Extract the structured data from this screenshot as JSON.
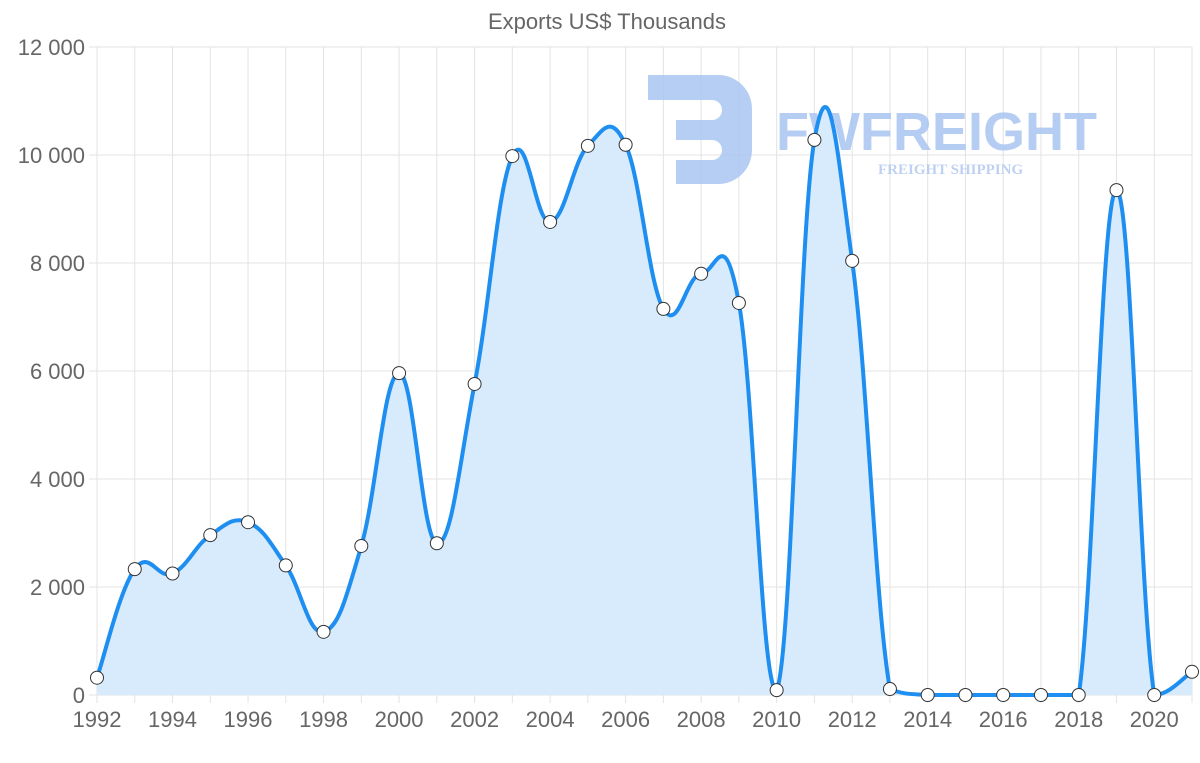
{
  "chart_data": {
    "type": "area",
    "title": "Exports US$ Thousands",
    "xlabel": "",
    "ylabel": "",
    "x": [
      1992,
      1993,
      1994,
      1995,
      1996,
      1997,
      1998,
      1999,
      2000,
      2001,
      2002,
      2003,
      2004,
      2005,
      2006,
      2007,
      2008,
      2009,
      2010,
      2011,
      2012,
      2013,
      2014,
      2015,
      2016,
      2017,
      2018,
      2019,
      2020,
      2021
    ],
    "series": [
      {
        "name": "Exports US$ Thousands",
        "values": [
          320,
          2330,
          2250,
          2960,
          3200,
          2400,
          1170,
          2760,
          5960,
          2810,
          5760,
          9980,
          8760,
          10170,
          10190,
          7150,
          7800,
          7260,
          90,
          10280,
          8040,
          110,
          0,
          0,
          0,
          0,
          0,
          9350,
          0,
          430
        ]
      }
    ],
    "ylim": [
      0,
      12000
    ],
    "yticks": [
      0,
      2000,
      4000,
      6000,
      8000,
      10000,
      12000
    ],
    "ytick_labels": [
      "0",
      "2 000",
      "4 000",
      "6 000",
      "8 000",
      "10 000",
      "12 000"
    ],
    "xticks": [
      1992,
      1994,
      1996,
      1998,
      2000,
      2002,
      2004,
      2006,
      2008,
      2010,
      2012,
      2014,
      2016,
      2018,
      2020
    ],
    "xlim": [
      1992,
      2021
    ],
    "grid": true,
    "legend": "none",
    "colors": {
      "line": "#1e8ff0",
      "fill": "#d8ebfc",
      "grid": "#e3e3e3",
      "marker_fill": "#ffffff",
      "marker_stroke": "#333333"
    }
  },
  "watermark": {
    "brand": "FWFREIGHT",
    "tagline": "FREIGHT SHIPPING"
  }
}
